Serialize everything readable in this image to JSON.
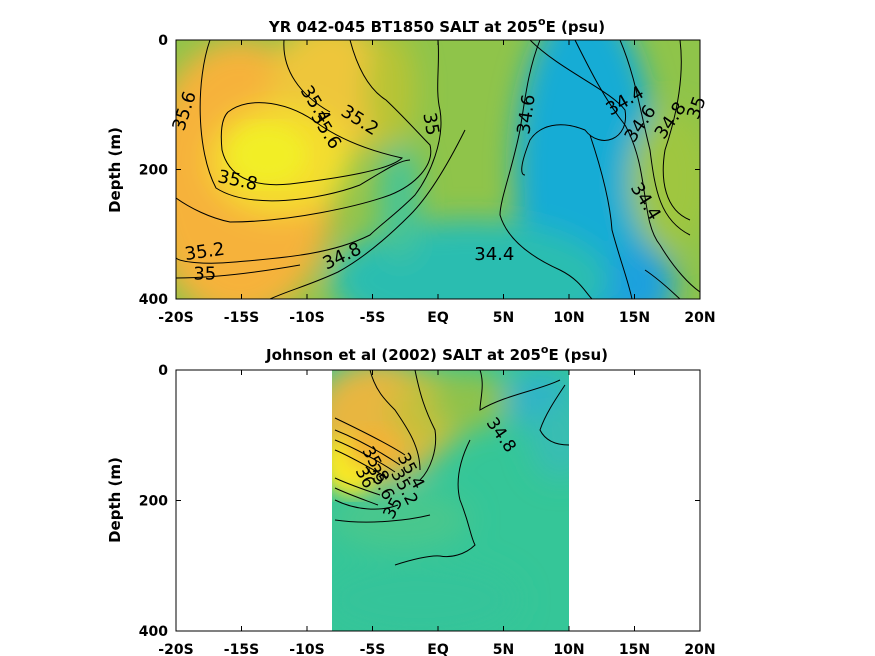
{
  "chart_data": [
    {
      "type": "heatmap",
      "title": "YR 042-045 BT1850 SALT at 205",
      "title_sup": "o",
      "title_tail": "E (psu)",
      "ylabel": "Depth (m)",
      "xlim": [
        -20,
        20
      ],
      "ylim": [
        0,
        400
      ],
      "x_ticks": [
        {
          "value": -20,
          "label": "-20S"
        },
        {
          "value": -15,
          "label": "-15S"
        },
        {
          "value": -10,
          "label": "-10S"
        },
        {
          "value": -5,
          "label": "-5S"
        },
        {
          "value": 0,
          "label": "EQ"
        },
        {
          "value": 5,
          "label": "5N"
        },
        {
          "value": 10,
          "label": "10N"
        },
        {
          "value": 15,
          "label": "15N"
        },
        {
          "value": 20,
          "label": "20N"
        }
      ],
      "y_ticks": [
        {
          "value": 0,
          "label": "0"
        },
        {
          "value": 200,
          "label": "200"
        },
        {
          "value": 400,
          "label": "400"
        }
      ],
      "data_extent": [
        -20,
        20
      ],
      "contour_labels": [
        {
          "text": "35.6",
          "x": -19.3,
          "y": 110,
          "angle": -72
        },
        {
          "text": "35.4",
          "x": -9.4,
          "y": 100,
          "angle": 58
        },
        {
          "text": "35.6",
          "x": -8.6,
          "y": 140,
          "angle": 58
        },
        {
          "text": "35.8",
          "x": -15.3,
          "y": 218,
          "angle": 12
        },
        {
          "text": "35.2",
          "x": -6.0,
          "y": 125,
          "angle": 32
        },
        {
          "text": "35",
          "x": -0.6,
          "y": 130,
          "angle": 80
        },
        {
          "text": "35.2",
          "x": -17.8,
          "y": 328,
          "angle": -8
        },
        {
          "text": "35",
          "x": -17.8,
          "y": 362,
          "angle": 0
        },
        {
          "text": "34.8",
          "x": -7.3,
          "y": 335,
          "angle": -25
        },
        {
          "text": "34.6",
          "x": 6.8,
          "y": 115,
          "angle": -82
        },
        {
          "text": "34.4",
          "x": 4.3,
          "y": 332,
          "angle": 0
        },
        {
          "text": "34.4",
          "x": 14.3,
          "y": 95,
          "angle": -30
        },
        {
          "text": "34.6",
          "x": 15.5,
          "y": 130,
          "angle": -55
        },
        {
          "text": "34.8",
          "x": 17.8,
          "y": 125,
          "angle": -55
        },
        {
          "text": "35",
          "x": 19.8,
          "y": 105,
          "angle": -70
        },
        {
          "text": "34.4",
          "x": 15.8,
          "y": 250,
          "angle": 58
        }
      ]
    },
    {
      "type": "heatmap",
      "title": "Johnson et al (2002) SALT at 205",
      "title_sup": "o",
      "title_tail": "E (psu)",
      "ylabel": "Depth (m)",
      "xlim": [
        -20,
        20
      ],
      "ylim": [
        0,
        400
      ],
      "x_ticks": [
        {
          "value": -20,
          "label": "-20S"
        },
        {
          "value": -15,
          "label": "-15S"
        },
        {
          "value": -10,
          "label": "-10S"
        },
        {
          "value": -5,
          "label": "-5S"
        },
        {
          "value": 0,
          "label": "EQ"
        },
        {
          "value": 5,
          "label": "5N"
        },
        {
          "value": 10,
          "label": "10N"
        },
        {
          "value": 15,
          "label": "15N"
        },
        {
          "value": 20,
          "label": "20N"
        }
      ],
      "y_ticks": [
        {
          "value": 0,
          "label": "0"
        },
        {
          "value": 200,
          "label": "200"
        },
        {
          "value": 400,
          "label": "400"
        }
      ],
      "data_extent": [
        -8,
        10
      ],
      "contour_labels": [
        {
          "text": "34.8",
          "x": 4.8,
          "y": 100,
          "angle": 55
        },
        {
          "text": "35.4",
          "x": -2.1,
          "y": 155,
          "angle": 62
        },
        {
          "text": "35.2",
          "x": -2.6,
          "y": 180,
          "angle": 62
        },
        {
          "text": "35.8",
          "x": -4.8,
          "y": 145,
          "angle": 62
        },
        {
          "text": "35.6",
          "x": -4.4,
          "y": 172,
          "angle": 62
        },
        {
          "text": "36",
          "x": -5.6,
          "y": 165,
          "angle": 62
        },
        {
          "text": "35",
          "x": -3.4,
          "y": 212,
          "angle": -62
        }
      ]
    }
  ]
}
